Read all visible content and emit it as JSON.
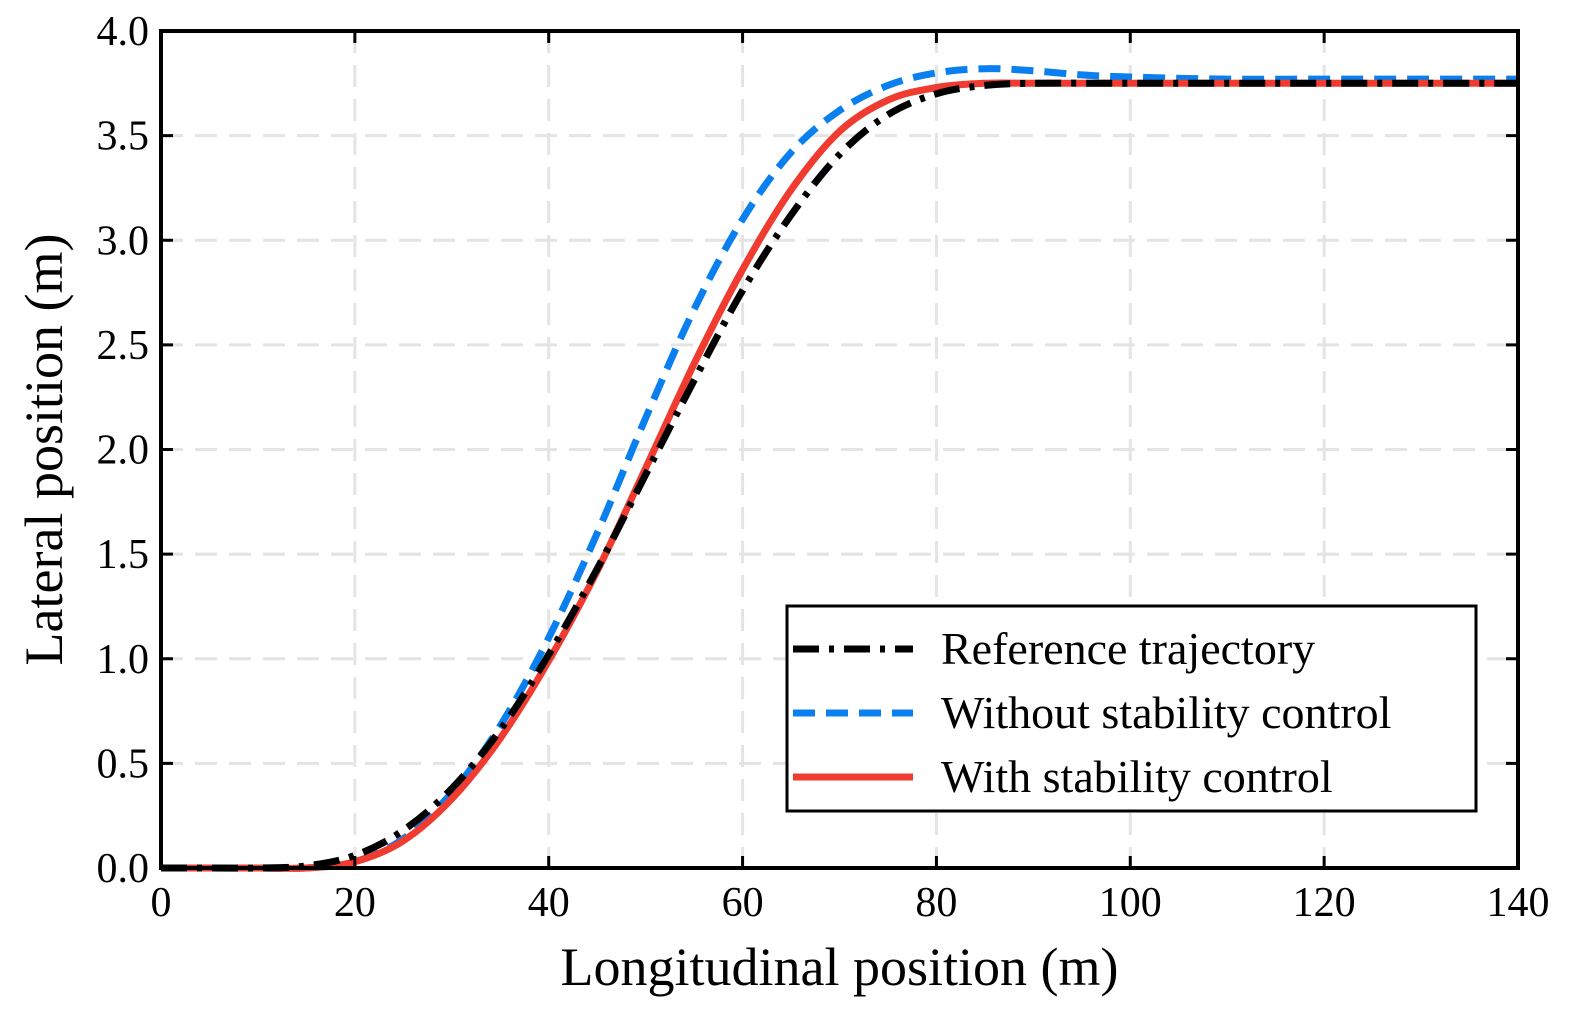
{
  "chart_data": {
    "type": "line",
    "title": "",
    "xlabel": "Longitudinal position (m)",
    "ylabel": "Lateral position (m)",
    "xlim": [
      0,
      140
    ],
    "ylim": [
      0,
      4.0
    ],
    "xticks": [
      0,
      20,
      40,
      60,
      80,
      100,
      120,
      140
    ],
    "yticks": [
      0.0,
      0.5,
      1.0,
      1.5,
      2.0,
      2.5,
      3.0,
      3.5,
      4.0
    ],
    "xtick_labels": [
      "0",
      "20",
      "40",
      "60",
      "80",
      "100",
      "120",
      "140"
    ],
    "ytick_labels": [
      "0.0",
      "0.5",
      "1.0",
      "1.5",
      "2.0",
      "2.5",
      "3.0",
      "3.5",
      "4.0"
    ],
    "grid": true,
    "legend_position": "bottom-right",
    "series": [
      {
        "name": "Reference trajectory",
        "color": "#000000",
        "style": "dashdot",
        "x": [
          0,
          5,
          10,
          15,
          20,
          25,
          30,
          35,
          40,
          45,
          50,
          55,
          60,
          65,
          70,
          75,
          80,
          85,
          90,
          100,
          110,
          120,
          130,
          140
        ],
        "y": [
          0.0,
          0.0,
          0.0,
          0.01,
          0.06,
          0.18,
          0.38,
          0.66,
          1.02,
          1.43,
          1.88,
          2.33,
          2.76,
          3.12,
          3.41,
          3.6,
          3.7,
          3.74,
          3.75,
          3.75,
          3.75,
          3.75,
          3.75,
          3.75
        ]
      },
      {
        "name": "Without stability control",
        "color": "#0a7ff0",
        "style": "dashed",
        "x": [
          0,
          5,
          10,
          15,
          20,
          25,
          30,
          35,
          40,
          45,
          50,
          55,
          60,
          65,
          70,
          75,
          80,
          85,
          90,
          95,
          100,
          110,
          120,
          130,
          140
        ],
        "y": [
          0.0,
          0.0,
          0.0,
          0.0,
          0.03,
          0.14,
          0.36,
          0.68,
          1.1,
          1.6,
          2.15,
          2.67,
          3.1,
          3.42,
          3.62,
          3.74,
          3.8,
          3.82,
          3.81,
          3.79,
          3.78,
          3.77,
          3.77,
          3.77,
          3.77
        ]
      },
      {
        "name": "With stability control",
        "color": "#f03c30",
        "style": "solid",
        "x": [
          0,
          5,
          10,
          15,
          20,
          25,
          30,
          35,
          40,
          45,
          50,
          55,
          60,
          65,
          70,
          75,
          80,
          85,
          90,
          100,
          110,
          120,
          130,
          140
        ],
        "y": [
          0.0,
          0.0,
          0.0,
          0.0,
          0.03,
          0.13,
          0.33,
          0.62,
          0.99,
          1.42,
          1.91,
          2.41,
          2.86,
          3.24,
          3.52,
          3.67,
          3.73,
          3.75,
          3.75,
          3.75,
          3.75,
          3.75,
          3.75,
          3.75
        ]
      }
    ]
  }
}
